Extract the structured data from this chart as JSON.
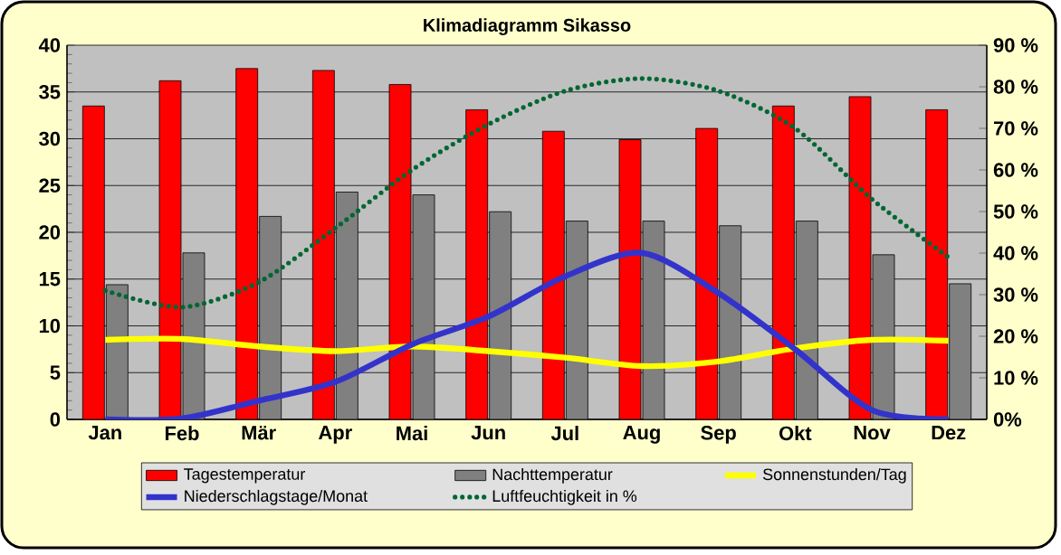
{
  "chart_data": {
    "type": "bar",
    "title": "Klimadiagramm Sikasso",
    "categories": [
      "Jan",
      "Feb",
      "Mär",
      "Apr",
      "Mai",
      "Jun",
      "Jul",
      "Aug",
      "Sep",
      "Okt",
      "Nov",
      "Dez"
    ],
    "series": [
      {
        "name": "Tagestemperatur",
        "color": "#ff0000",
        "values": [
          33.5,
          36.2,
          37.5,
          37.3,
          35.8,
          33.1,
          30.8,
          29.9,
          31.1,
          33.5,
          34.5,
          33.1
        ]
      },
      {
        "name": "Nachttemperatur",
        "color": "#808080",
        "values": [
          14.4,
          17.8,
          21.7,
          24.3,
          24.0,
          22.2,
          21.2,
          21.2,
          20.7,
          21.2,
          17.6,
          14.5
        ]
      },
      {
        "name": "Sonnenstunden/Tag",
        "type": "line",
        "line_style": "solid",
        "color": "#ffff00",
        "values": [
          8.5,
          8.6,
          7.8,
          7.3,
          7.8,
          7.3,
          6.6,
          5.7,
          6.2,
          7.6,
          8.5,
          8.4
        ]
      },
      {
        "name": "Niederschlagstage/Monat",
        "type": "line",
        "line_style": "solid",
        "color": "#3333cc",
        "values": [
          0,
          0.1,
          2,
          4,
          8,
          11,
          15.3,
          17.8,
          13.5,
          7.5,
          1,
          0
        ]
      },
      {
        "name": "Luftfeuchtigkeit in %",
        "type": "line",
        "line_style": "dotted",
        "axis": "y2",
        "color": "#006633",
        "values": [
          31,
          27,
          33,
          46,
          60,
          71,
          79,
          82,
          79,
          70,
          53,
          39
        ]
      }
    ],
    "ylim": [
      0,
      40
    ],
    "yticks": [
      0,
      5,
      10,
      15,
      20,
      25,
      30,
      35,
      40
    ],
    "y2lim": [
      0,
      90
    ],
    "y2ticks": [
      {
        "value": 0,
        "label": "0%"
      },
      {
        "value": 10,
        "label": "10 %"
      },
      {
        "value": 20,
        "label": "20 %"
      },
      {
        "value": 30,
        "label": "30 %"
      },
      {
        "value": 40,
        "label": "40 %"
      },
      {
        "value": 50,
        "label": "50 %"
      },
      {
        "value": 60,
        "label": "60 %"
      },
      {
        "value": 70,
        "label": "70 %"
      },
      {
        "value": 80,
        "label": "80 %"
      },
      {
        "value": 90,
        "label": "90 %"
      }
    ],
    "grid": "y",
    "legend": "bottom",
    "marker": "none"
  }
}
